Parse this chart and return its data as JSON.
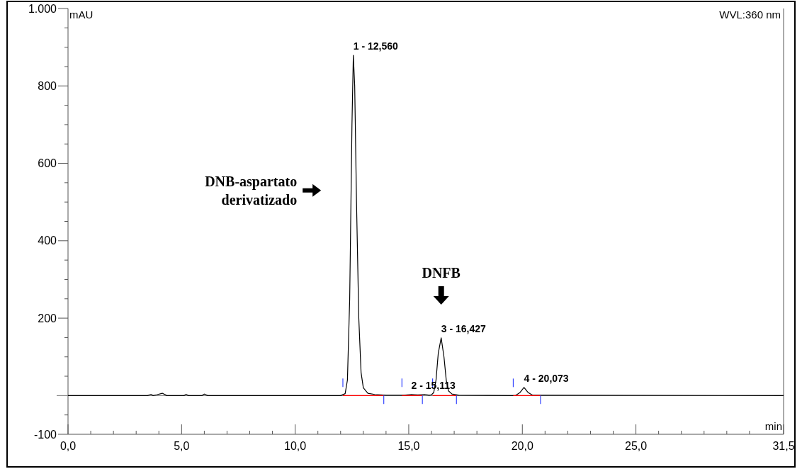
{
  "chart_data": {
    "type": "line",
    "xlabel": "min",
    "ylabel": "mAU",
    "xlim": [
      0,
      31.5
    ],
    "ylim": [
      -100,
      1000
    ],
    "xticks": [
      {
        "value": 0,
        "label": "0,0"
      },
      {
        "value": 1,
        "label": null
      },
      {
        "value": 2,
        "label": null
      },
      {
        "value": 3,
        "label": null
      },
      {
        "value": 4,
        "label": null
      },
      {
        "value": 5,
        "label": "5,0"
      },
      {
        "value": 6,
        "label": null
      },
      {
        "value": 7,
        "label": null
      },
      {
        "value": 8,
        "label": null
      },
      {
        "value": 9,
        "label": null
      },
      {
        "value": 10,
        "label": "10,0"
      },
      {
        "value": 11,
        "label": null
      },
      {
        "value": 12,
        "label": null
      },
      {
        "value": 13,
        "label": null
      },
      {
        "value": 14,
        "label": null
      },
      {
        "value": 15,
        "label": "15,0"
      },
      {
        "value": 16,
        "label": null
      },
      {
        "value": 17,
        "label": null
      },
      {
        "value": 18,
        "label": null
      },
      {
        "value": 19,
        "label": null
      },
      {
        "value": 20,
        "label": "20,0"
      },
      {
        "value": 21,
        "label": null
      },
      {
        "value": 22,
        "label": null
      },
      {
        "value": 23,
        "label": null
      },
      {
        "value": 24,
        "label": null
      },
      {
        "value": 25,
        "label": "25,0"
      },
      {
        "value": 26,
        "label": null
      },
      {
        "value": 27,
        "label": null
      },
      {
        "value": 28,
        "label": null
      },
      {
        "value": 29,
        "label": null
      },
      {
        "value": 30,
        "label": null
      },
      {
        "value": 31.5,
        "label": "31,5"
      }
    ],
    "yticks": [
      -100,
      {
        "value": -50,
        "label": null
      },
      {
        "value": 50,
        "label": null
      },
      {
        "value": 100,
        "label": null
      },
      {
        "value": 150,
        "label": null
      },
      200,
      {
        "value": 250,
        "label": null
      },
      {
        "value": 300,
        "label": null
      },
      {
        "value": 350,
        "label": null
      },
      400,
      {
        "value": 450,
        "label": null
      },
      {
        "value": 500,
        "label": null
      },
      {
        "value": 550,
        "label": null
      },
      600,
      {
        "value": 650,
        "label": null
      },
      {
        "value": 700,
        "label": null
      },
      {
        "value": 750,
        "label": null
      },
      800,
      {
        "value": 850,
        "label": null
      },
      {
        "value": 900,
        "label": null
      },
      {
        "value": 950,
        "label": null
      },
      {
        "value": 1000,
        "label": "1.000"
      }
    ],
    "series": [
      {
        "color": "#000000",
        "x": [
          0,
          3.5,
          3.65,
          3.75,
          3.9,
          4.15,
          4.35,
          5.1,
          5.2,
          5.3,
          5.9,
          6.0,
          6.15,
          12.0,
          12.2,
          12.3,
          12.4,
          12.5,
          12.56,
          12.62,
          12.7,
          12.8,
          12.9,
          13.0,
          13.2,
          13.5,
          14.0,
          14.8,
          15.113,
          15.4,
          15.7,
          15.9,
          16.0,
          16.1,
          16.2,
          16.3,
          16.427,
          16.55,
          16.65,
          16.75,
          16.9,
          17.2,
          19.7,
          19.9,
          20.073,
          20.25,
          20.45,
          31.5
        ],
        "values": [
          0,
          0,
          3,
          0,
          2,
          6,
          0,
          0,
          3,
          0,
          0,
          4,
          0,
          0,
          5,
          40,
          250,
          700,
          879,
          800,
          500,
          200,
          60,
          20,
          6,
          3,
          1,
          1,
          3,
          2,
          3,
          1,
          2,
          8,
          40,
          110,
          149,
          100,
          40,
          12,
          4,
          1,
          0,
          8,
          21,
          8,
          1,
          0
        ]
      },
      {
        "color": "#ff0000",
        "x": [
          12.1,
          13.9,
          13.95,
          14.7,
          15.6,
          15.65,
          16.05,
          17.1,
          17.15,
          19.6,
          20.8
        ],
        "values": [
          0,
          0,
          null,
          0,
          0,
          null,
          0,
          0,
          null,
          0,
          0
        ]
      }
    ],
    "annotations": [
      {
        "text": "1 - 12,560",
        "x": 12.56,
        "y": 879
      },
      {
        "text": "2 - 15,113",
        "x": 15.113,
        "y": 3
      },
      {
        "text": "3 - 16,427",
        "x": 16.427,
        "y": 149
      },
      {
        "text": "4 - 20,073",
        "x": 20.073,
        "y": 21
      },
      "DNB-aspartato\nderivatizado",
      "DNFB",
      "WVL:360 nm"
    ]
  }
}
